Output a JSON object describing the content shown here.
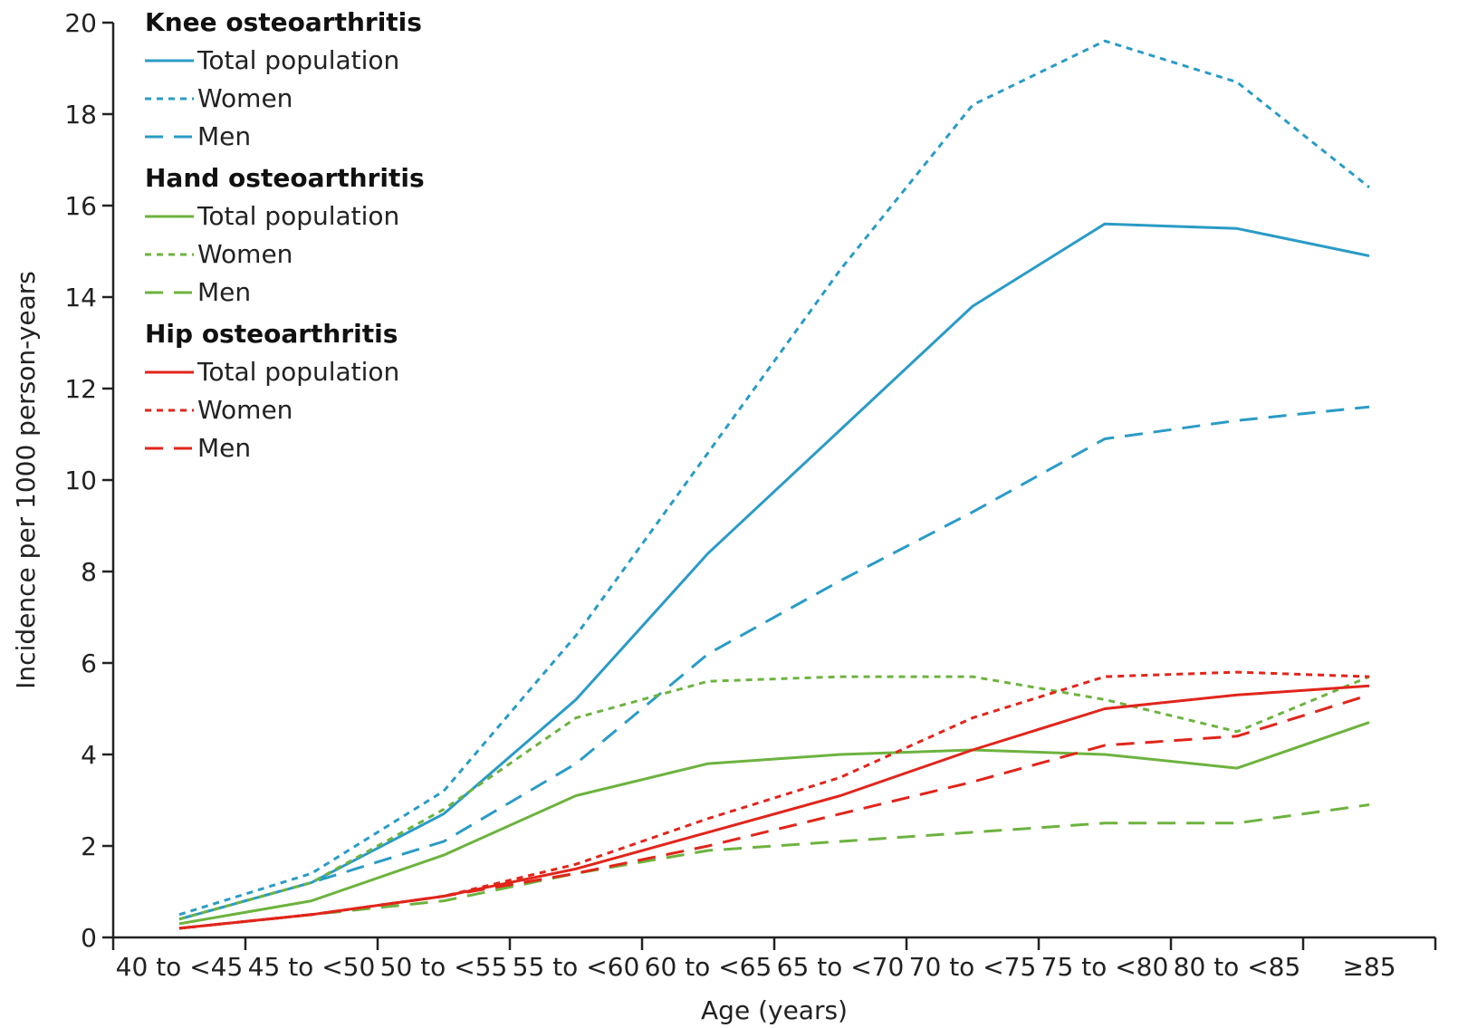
{
  "chart_data": {
    "type": "line",
    "title": "",
    "xlabel": "Age (years)",
    "ylabel": "Incidence per 1000 person-years",
    "categories": [
      "40 to <45",
      "45 to <50",
      "50 to <55",
      "55 to <60",
      "60 to <65",
      "65 to <70",
      "70 to <75",
      "75 to <80",
      "80 to <85",
      "≥85"
    ],
    "ylim": [
      0,
      20
    ],
    "yticks": [
      0,
      2,
      4,
      6,
      8,
      10,
      12,
      14,
      16,
      18,
      20
    ],
    "grid": false,
    "legend_position": "top-left",
    "groups": [
      {
        "name": "Knee osteoarthritis",
        "color": "#2a9bc6",
        "series": [
          {
            "name": "Total population",
            "style": "solid",
            "values": [
              0.4,
              1.2,
              2.7,
              5.2,
              8.4,
              11.1,
              13.8,
              15.6,
              15.5,
              14.9
            ]
          },
          {
            "name": "Women",
            "style": "dotted",
            "values": [
              0.5,
              1.4,
              3.2,
              6.6,
              10.6,
              14.6,
              18.2,
              19.6,
              18.7,
              16.4
            ]
          },
          {
            "name": "Men",
            "style": "dashed",
            "values": [
              0.4,
              1.2,
              2.1,
              3.8,
              6.2,
              7.8,
              9.3,
              10.9,
              11.3,
              11.6
            ]
          }
        ]
      },
      {
        "name": "Hand osteoarthritis",
        "color": "#6db33f",
        "series": [
          {
            "name": "Total population",
            "style": "solid",
            "values": [
              0.3,
              0.8,
              1.8,
              3.1,
              3.8,
              4.0,
              4.1,
              4.0,
              3.7,
              4.7
            ]
          },
          {
            "name": "Women",
            "style": "dotted",
            "values": [
              0.4,
              1.2,
              2.8,
              4.8,
              5.6,
              5.7,
              5.7,
              5.2,
              4.5,
              5.7
            ]
          },
          {
            "name": "Men",
            "style": "dashed",
            "values": [
              0.2,
              0.5,
              0.8,
              1.4,
              1.9,
              2.1,
              2.3,
              2.5,
              2.5,
              2.9
            ]
          }
        ]
      },
      {
        "name": "Hip osteoarthritis",
        "color": "#e1251b",
        "series": [
          {
            "name": "Total population",
            "style": "solid",
            "values": [
              0.2,
              0.5,
              0.9,
              1.5,
              2.3,
              3.1,
              4.1,
              5.0,
              5.3,
              5.5
            ]
          },
          {
            "name": "Women",
            "style": "dotted",
            "values": [
              0.2,
              0.5,
              0.9,
              1.6,
              2.6,
              3.5,
              4.8,
              5.7,
              5.8,
              5.7
            ]
          },
          {
            "name": "Men",
            "style": "dashed",
            "values": [
              0.2,
              0.5,
              0.9,
              1.4,
              2.0,
              2.7,
              3.4,
              4.2,
              4.4,
              5.3
            ]
          }
        ]
      }
    ]
  }
}
